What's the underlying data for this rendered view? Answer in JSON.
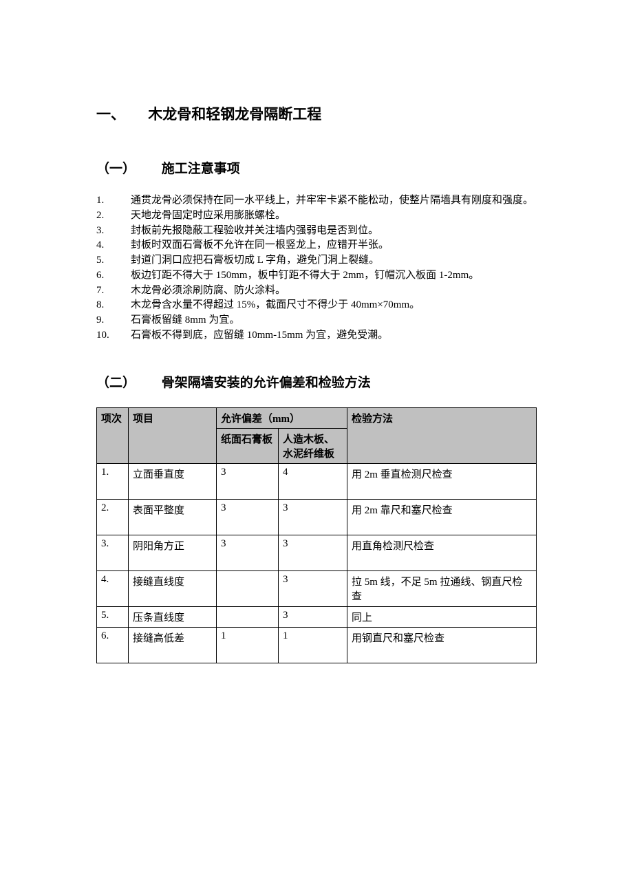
{
  "headings": {
    "h1_num": "一、",
    "h1_text": "木龙骨和轻钢龙骨隔断工程",
    "h2a_num": "（一）",
    "h2a_text": "施工注意事项",
    "h2b_num": "（二）",
    "h2b_text": "骨架隔墙安装的允许偏差和检验方法"
  },
  "notes": [
    {
      "n": "1.",
      "t": "通贯龙骨必须保持在同一水平线上，并牢牢卡紧不能松动，使整片隔墙具有刚度和强度。"
    },
    {
      "n": "2.",
      "t": "天地龙骨固定时应采用膨胀螺栓。"
    },
    {
      "n": "3.",
      "t": "封板前先报隐蔽工程验收并关注墙内强弱电是否到位。"
    },
    {
      "n": "4.",
      "t": "封板时双面石膏板不允许在同一根竖龙上，应错开半张。"
    },
    {
      "n": "5.",
      "t": "封道门洞口应把石膏板切成 L 字角，避免门洞上裂缝。"
    },
    {
      "n": "6.",
      "t": "板边钉距不得大于 150mm，板中钉距不得大于 2mm，钉帽沉入板面 1-2mm。"
    },
    {
      "n": "7.",
      "t": "木龙骨必须涂刷防腐、防火涂料。"
    },
    {
      "n": "8.",
      "t": "木龙骨含水量不得超过 15%，截面尺寸不得少于 40mm×70mm。"
    },
    {
      "n": "9.",
      "t": "石膏板留缝 8mm 为宜。"
    },
    {
      "n": "10.",
      "t": "石膏板不得到底，应留缝 10mm-15mm 为宜，避免受潮。"
    }
  ],
  "table": {
    "head": {
      "idx": "项次",
      "item": "项目",
      "dev_group": "允许偏差（mm）",
      "col_a": "纸面石膏板",
      "col_b": "人造木板、水泥纤维板",
      "method": "检验方法"
    },
    "rows": [
      {
        "idx": "1.",
        "item": "立面垂直度",
        "a": "3",
        "b": "4",
        "method": "用 2m 垂直检测尺检查"
      },
      {
        "idx": "2.",
        "item": "表面平整度",
        "a": "3",
        "b": "3",
        "method": "用 2m 靠尺和塞尺检查"
      },
      {
        "idx": "3.",
        "item": "阴阳角方正",
        "a": "3",
        "b": "3",
        "method": "用直角检测尺检查"
      },
      {
        "idx": "4.",
        "item": "接缝直线度",
        "a": "",
        "b": "3",
        "method": "拉 5m 线，不足 5m 拉通线、钢直尺检查"
      },
      {
        "idx": "5.",
        "item": "压条直线度",
        "a": "",
        "b": "3",
        "method": "同上"
      },
      {
        "idx": "6.",
        "item": "接缝高低差",
        "a": "1",
        "b": "1",
        "method": "用钢直尺和塞尺检查"
      }
    ]
  },
  "style": {
    "background_color": "#ffffff",
    "text_color": "#000000",
    "header_bg": "#c0c0c0",
    "border_color": "#000000",
    "body_fontsize_pt": 12,
    "h1_fontsize_pt": 16,
    "h2_fontsize_pt": 14,
    "font_family": "SimSun"
  }
}
